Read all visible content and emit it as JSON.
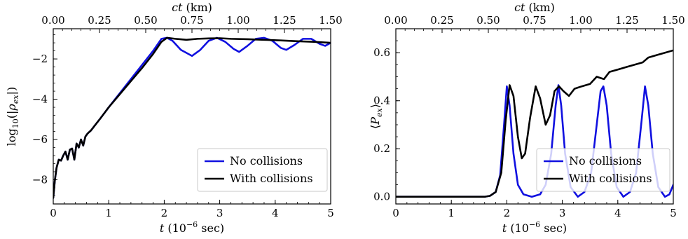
{
  "colors": {
    "no_collisions": "#1010e0",
    "with_collisions": "#000000",
    "legend_frame": "#c8c8c8"
  },
  "chart_data": [
    {
      "type": "line",
      "xlabel": "t (10⁻⁶ sec)",
      "xlabel_parts": {
        "var": "t",
        "rest": " (10",
        "sup": "−6",
        "end": " sec)"
      },
      "ylabel": "log₁₀(|ρ_ex|)",
      "ylabel_parts": {
        "pre": "log",
        "sub1": "10",
        "mid": "(|",
        "var": "ρ",
        "sub2": "ex",
        "end": "|)"
      },
      "top_xlabel": "ct (km)",
      "top_xlabel_parts": {
        "var": "ct",
        "rest": " (km)"
      },
      "xlim": [
        0,
        5
      ],
      "ylim": [
        -9.2,
        -0.5
      ],
      "xticks": [
        0,
        1,
        2,
        3,
        4,
        5
      ],
      "xtick_labels": [
        "0",
        "1",
        "2",
        "3",
        "4",
        "5"
      ],
      "yticks": [
        -8,
        -6,
        -4,
        -2
      ],
      "ytick_labels": [
        "−8",
        "−6",
        "−4",
        "−2"
      ],
      "top_ticks": [
        0,
        0.25,
        0.5,
        0.75,
        1.0,
        1.25,
        1.5
      ],
      "top_tick_labels": [
        "0.00",
        "0.25",
        "0.50",
        "0.75",
        "1.00",
        "1.25",
        "1.50"
      ],
      "top_scale_km_per_unit": 0.3,
      "grid": false,
      "legend_position": "lower-right",
      "series": [
        {
          "name": "No collisions",
          "color_key": "no_collisions",
          "points": [
            [
              0,
              -8.9
            ],
            [
              0.03,
              -8.0
            ],
            [
              0.06,
              -7.4
            ],
            [
              0.1,
              -7.0
            ],
            [
              0.14,
              -7.05
            ],
            [
              0.18,
              -6.8
            ],
            [
              0.22,
              -6.6
            ],
            [
              0.26,
              -7.0
            ],
            [
              0.3,
              -6.5
            ],
            [
              0.34,
              -6.45
            ],
            [
              0.38,
              -7.0
            ],
            [
              0.42,
              -6.2
            ],
            [
              0.46,
              -6.4
            ],
            [
              0.5,
              -6.0
            ],
            [
              0.54,
              -6.3
            ],
            [
              0.58,
              -5.85
            ],
            [
              0.62,
              -5.7
            ],
            [
              0.68,
              -5.55
            ],
            [
              0.75,
              -5.3
            ],
            [
              0.85,
              -4.95
            ],
            [
              1.0,
              -4.4
            ],
            [
              1.2,
              -3.7
            ],
            [
              1.4,
              -3.0
            ],
            [
              1.6,
              -2.3
            ],
            [
              1.8,
              -1.6
            ],
            [
              1.95,
              -1.0
            ],
            [
              2.05,
              -0.95
            ],
            [
              2.15,
              -1.1
            ],
            [
              2.3,
              -1.55
            ],
            [
              2.5,
              -1.85
            ],
            [
              2.65,
              -1.55
            ],
            [
              2.8,
              -1.1
            ],
            [
              2.95,
              -0.95
            ],
            [
              3.1,
              -1.15
            ],
            [
              3.25,
              -1.5
            ],
            [
              3.35,
              -1.65
            ],
            [
              3.5,
              -1.35
            ],
            [
              3.65,
              -1.0
            ],
            [
              3.8,
              -0.95
            ],
            [
              3.95,
              -1.1
            ],
            [
              4.1,
              -1.45
            ],
            [
              4.2,
              -1.55
            ],
            [
              4.35,
              -1.3
            ],
            [
              4.5,
              -1.0
            ],
            [
              4.65,
              -1.0
            ],
            [
              4.8,
              -1.25
            ],
            [
              4.9,
              -1.35
            ],
            [
              5.0,
              -1.2
            ]
          ]
        },
        {
          "name": "With collisions",
          "color_key": "with_collisions",
          "points": [
            [
              0,
              -8.9
            ],
            [
              0.03,
              -8.0
            ],
            [
              0.06,
              -7.4
            ],
            [
              0.1,
              -7.0
            ],
            [
              0.14,
              -7.05
            ],
            [
              0.18,
              -6.8
            ],
            [
              0.22,
              -6.6
            ],
            [
              0.26,
              -7.0
            ],
            [
              0.3,
              -6.5
            ],
            [
              0.34,
              -6.45
            ],
            [
              0.38,
              -7.0
            ],
            [
              0.42,
              -6.2
            ],
            [
              0.46,
              -6.4
            ],
            [
              0.5,
              -6.0
            ],
            [
              0.54,
              -6.3
            ],
            [
              0.58,
              -5.85
            ],
            [
              0.62,
              -5.7
            ],
            [
              0.68,
              -5.55
            ],
            [
              0.75,
              -5.3
            ],
            [
              0.85,
              -4.95
            ],
            [
              1.0,
              -4.4
            ],
            [
              1.2,
              -3.75
            ],
            [
              1.4,
              -3.1
            ],
            [
              1.6,
              -2.45
            ],
            [
              1.8,
              -1.75
            ],
            [
              1.95,
              -1.15
            ],
            [
              2.05,
              -0.95
            ],
            [
              2.2,
              -1.0
            ],
            [
              2.4,
              -1.05
            ],
            [
              2.6,
              -1.0
            ],
            [
              2.8,
              -0.98
            ],
            [
              3.0,
              -0.97
            ],
            [
              3.2,
              -1.0
            ],
            [
              3.5,
              -1.02
            ],
            [
              3.8,
              -1.05
            ],
            [
              4.1,
              -1.08
            ],
            [
              4.4,
              -1.12
            ],
            [
              4.7,
              -1.15
            ],
            [
              5.0,
              -1.2
            ]
          ]
        }
      ]
    },
    {
      "type": "line",
      "xlabel": "t (10⁻⁶ sec)",
      "xlabel_parts": {
        "var": "t",
        "rest": " (10",
        "sup": "−6",
        "end": " sec)"
      },
      "ylabel": "⟨P_ex⟩",
      "ylabel_parts": {
        "pre": "⟨",
        "var": "P",
        "sub": "ex",
        "end": "⟩"
      },
      "top_xlabel": "ct (km)",
      "top_xlabel_parts": {
        "var": "ct",
        "rest": " (km)"
      },
      "xlim": [
        0,
        5
      ],
      "ylim": [
        -0.03,
        0.7
      ],
      "xticks": [
        0,
        1,
        2,
        3,
        4,
        5
      ],
      "xtick_labels": [
        "0",
        "1",
        "2",
        "3",
        "4",
        "5"
      ],
      "yticks": [
        0.0,
        0.2,
        0.4,
        0.6
      ],
      "ytick_labels": [
        "0.0",
        "0.2",
        "0.4",
        "0.6"
      ],
      "top_ticks": [
        0,
        0.25,
        0.5,
        0.75,
        1.0,
        1.25,
        1.5
      ],
      "top_tick_labels": [
        "0.00",
        "0.25",
        "0.50",
        "0.75",
        "1.00",
        "1.25",
        "1.50"
      ],
      "top_scale_km_per_unit": 0.3,
      "grid": false,
      "legend_position": "lower-right",
      "series": [
        {
          "name": "No collisions",
          "color_key": "no_collisions",
          "points": [
            [
              0,
              0
            ],
            [
              1.6,
              0
            ],
            [
              1.7,
              0.004
            ],
            [
              1.8,
              0.02
            ],
            [
              1.88,
              0.09
            ],
            [
              1.95,
              0.3
            ],
            [
              2.0,
              0.46
            ],
            [
              2.05,
              0.38
            ],
            [
              2.12,
              0.18
            ],
            [
              2.2,
              0.05
            ],
            [
              2.3,
              0.01
            ],
            [
              2.45,
              0.0
            ],
            [
              2.6,
              0.01
            ],
            [
              2.7,
              0.05
            ],
            [
              2.8,
              0.18
            ],
            [
              2.88,
              0.38
            ],
            [
              2.93,
              0.465
            ],
            [
              2.98,
              0.38
            ],
            [
              3.05,
              0.18
            ],
            [
              3.15,
              0.04
            ],
            [
              3.28,
              0.0
            ],
            [
              3.4,
              0.02
            ],
            [
              3.52,
              0.1
            ],
            [
              3.62,
              0.3
            ],
            [
              3.69,
              0.44
            ],
            [
              3.74,
              0.46
            ],
            [
              3.8,
              0.38
            ],
            [
              3.88,
              0.18
            ],
            [
              3.98,
              0.04
            ],
            [
              4.1,
              0.0
            ],
            [
              4.22,
              0.02
            ],
            [
              4.33,
              0.1
            ],
            [
              4.43,
              0.32
            ],
            [
              4.49,
              0.46
            ],
            [
              4.55,
              0.38
            ],
            [
              4.63,
              0.18
            ],
            [
              4.73,
              0.04
            ],
            [
              4.85,
              0.0
            ],
            [
              4.93,
              0.01
            ],
            [
              5.0,
              0.05
            ]
          ]
        },
        {
          "name": "With collisions",
          "color_key": "with_collisions",
          "points": [
            [
              0,
              0
            ],
            [
              1.6,
              0
            ],
            [
              1.7,
              0.004
            ],
            [
              1.8,
              0.02
            ],
            [
              1.9,
              0.1
            ],
            [
              1.98,
              0.32
            ],
            [
              2.05,
              0.465
            ],
            [
              2.12,
              0.42
            ],
            [
              2.2,
              0.25
            ],
            [
              2.27,
              0.16
            ],
            [
              2.33,
              0.18
            ],
            [
              2.42,
              0.33
            ],
            [
              2.52,
              0.46
            ],
            [
              2.6,
              0.41
            ],
            [
              2.7,
              0.3
            ],
            [
              2.78,
              0.34
            ],
            [
              2.86,
              0.44
            ],
            [
              2.94,
              0.46
            ],
            [
              3.02,
              0.44
            ],
            [
              3.12,
              0.42
            ],
            [
              3.22,
              0.45
            ],
            [
              3.35,
              0.46
            ],
            [
              3.5,
              0.47
            ],
            [
              3.62,
              0.5
            ],
            [
              3.75,
              0.49
            ],
            [
              3.85,
              0.52
            ],
            [
              4.0,
              0.53
            ],
            [
              4.15,
              0.54
            ],
            [
              4.3,
              0.55
            ],
            [
              4.45,
              0.56
            ],
            [
              4.55,
              0.58
            ],
            [
              4.7,
              0.59
            ],
            [
              4.85,
              0.6
            ],
            [
              5.0,
              0.61
            ]
          ]
        }
      ]
    }
  ]
}
